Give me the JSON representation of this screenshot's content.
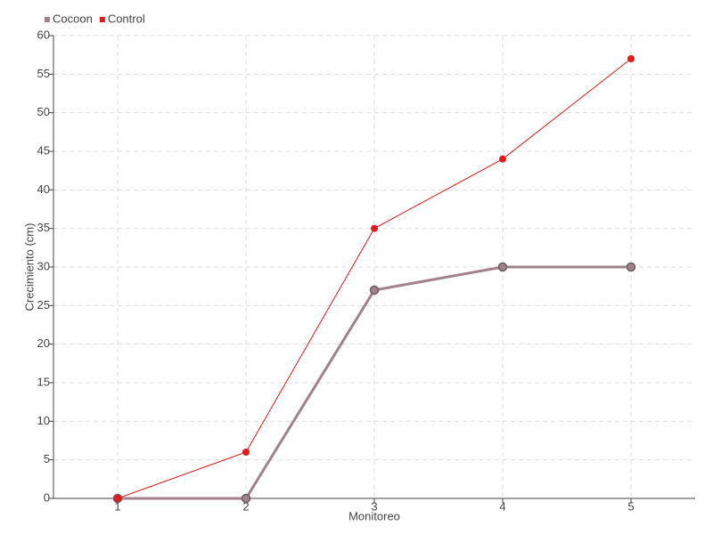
{
  "chart_data": {
    "type": "line",
    "x_label": "Monitoreo",
    "y_label": "Crecimiento (cm)",
    "categories": [
      "1",
      "2",
      "3",
      "4",
      "5"
    ],
    "series": [
      {
        "name": "Cocoon",
        "color": "#a0838a",
        "values": [
          0,
          0,
          27,
          30,
          30
        ]
      },
      {
        "name": "Control",
        "color": "#e31a1c",
        "values": [
          0,
          6,
          35,
          44,
          57
        ]
      }
    ],
    "ylim": [
      0,
      60
    ],
    "yticks": [
      0,
      5,
      10,
      15,
      20,
      25,
      30,
      35,
      40,
      45,
      50,
      55,
      60
    ],
    "grid": true,
    "legend": "top-left"
  }
}
